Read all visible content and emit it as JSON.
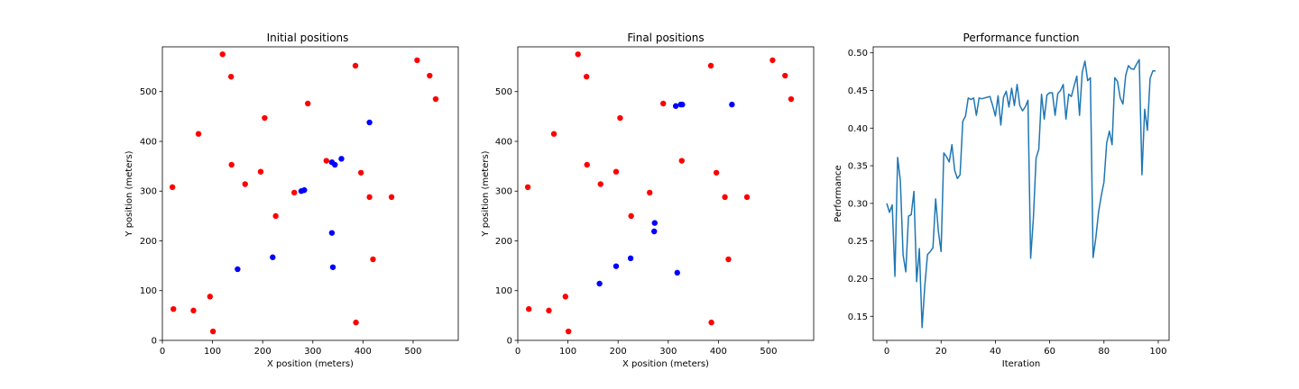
{
  "chart_data": [
    {
      "type": "scatter",
      "title": "Initial positions",
      "xlabel": "X position (meters)",
      "ylabel": "Y position (meters)",
      "xlim": [
        0,
        590
      ],
      "ylim": [
        0,
        590
      ],
      "xticks": [
        0,
        100,
        200,
        300,
        400,
        500
      ],
      "yticks": [
        0,
        100,
        200,
        300,
        400,
        500
      ],
      "grid": false,
      "series": [
        {
          "color": "#ff0000",
          "points": [
            [
              120,
              575
            ],
            [
              137,
              530
            ],
            [
              385,
              552
            ],
            [
              508,
              563
            ],
            [
              533,
              532
            ],
            [
              545,
              485
            ],
            [
              290,
              476
            ],
            [
              204,
              447
            ],
            [
              72,
              415
            ],
            [
              138,
              353
            ],
            [
              196,
              339
            ],
            [
              165,
              314
            ],
            [
              20,
              308
            ],
            [
              263,
              297
            ],
            [
              327,
              361
            ],
            [
              396,
              337
            ],
            [
              413,
              288
            ],
            [
              457,
              288
            ],
            [
              226,
              250
            ],
            [
              420,
              163
            ],
            [
              22,
              63
            ],
            [
              62,
              60
            ],
            [
              95,
              88
            ],
            [
              101,
              18
            ],
            [
              386,
              36
            ]
          ]
        },
        {
          "color": "#0000ff",
          "points": [
            [
              413,
              438
            ],
            [
              357,
              365
            ],
            [
              338,
              358
            ],
            [
              344,
              353
            ],
            [
              277,
              300
            ],
            [
              283,
              302
            ],
            [
              338,
              216
            ],
            [
              220,
              167
            ],
            [
              150,
              143
            ],
            [
              340,
              147
            ]
          ]
        }
      ]
    },
    {
      "type": "scatter",
      "title": "Final positions",
      "xlabel": "X position (meters)",
      "ylabel": "Y position (meters)",
      "xlim": [
        0,
        590
      ],
      "ylim": [
        0,
        590
      ],
      "xticks": [
        0,
        100,
        200,
        300,
        400,
        500
      ],
      "yticks": [
        0,
        100,
        200,
        300,
        400,
        500
      ],
      "grid": false,
      "series": [
        {
          "color": "#ff0000",
          "points": [
            [
              120,
              575
            ],
            [
              137,
              530
            ],
            [
              385,
              552
            ],
            [
              508,
              563
            ],
            [
              533,
              532
            ],
            [
              545,
              485
            ],
            [
              290,
              476
            ],
            [
              204,
              447
            ],
            [
              72,
              415
            ],
            [
              138,
              353
            ],
            [
              196,
              339
            ],
            [
              165,
              314
            ],
            [
              20,
              308
            ],
            [
              263,
              297
            ],
            [
              327,
              361
            ],
            [
              396,
              337
            ],
            [
              413,
              288
            ],
            [
              457,
              288
            ],
            [
              226,
              250
            ],
            [
              420,
              163
            ],
            [
              22,
              63
            ],
            [
              62,
              60
            ],
            [
              95,
              88
            ],
            [
              101,
              18
            ],
            [
              386,
              36
            ]
          ]
        },
        {
          "color": "#0000ff",
          "points": [
            [
              315,
              471
            ],
            [
              325,
              474
            ],
            [
              328,
              474
            ],
            [
              427,
              474
            ],
            [
              273,
              236
            ],
            [
              272,
              219
            ],
            [
              225,
              165
            ],
            [
              196,
              149
            ],
            [
              163,
              114
            ],
            [
              318,
              136
            ]
          ]
        }
      ]
    },
    {
      "type": "line",
      "title": "Performance function",
      "xlabel": "Iteration",
      "ylabel": "Performance",
      "xlim": [
        -5,
        104
      ],
      "ylim": [
        0.118,
        0.508
      ],
      "xticks": [
        0,
        20,
        40,
        60,
        80,
        100
      ],
      "yticks": [
        0.15,
        0.2,
        0.25,
        0.3,
        0.35,
        0.4,
        0.45,
        0.5
      ],
      "grid": false,
      "series": [
        {
          "color": "#1f77b4",
          "x": [
            0,
            1,
            2,
            3,
            4,
            5,
            6,
            7,
            8,
            9,
            10,
            11,
            12,
            13,
            14,
            15,
            16,
            17,
            18,
            19,
            20,
            21,
            22,
            23,
            24,
            25,
            26,
            27,
            28,
            29,
            30,
            31,
            32,
            33,
            34,
            35,
            36,
            37,
            38,
            39,
            40,
            41,
            42,
            43,
            44,
            45,
            46,
            47,
            48,
            49,
            50,
            51,
            52,
            53,
            54,
            55,
            56,
            57,
            58,
            59,
            60,
            61,
            62,
            63,
            64,
            65,
            66,
            67,
            68,
            69,
            70,
            71,
            72,
            73,
            74,
            75,
            76,
            77,
            78,
            79,
            80,
            81,
            82,
            83,
            84,
            85,
            86,
            87,
            88,
            89,
            90,
            91,
            92,
            93,
            94,
            95,
            96,
            97,
            98,
            99
          ],
          "y": [
            0.3,
            0.288,
            0.298,
            0.203,
            0.361,
            0.33,
            0.232,
            0.209,
            0.283,
            0.285,
            0.316,
            0.196,
            0.24,
            0.135,
            0.19,
            0.232,
            0.236,
            0.241,
            0.306,
            0.263,
            0.236,
            0.367,
            0.362,
            0.355,
            0.378,
            0.344,
            0.333,
            0.338,
            0.409,
            0.416,
            0.44,
            0.438,
            0.44,
            0.417,
            0.44,
            0.439,
            0.44,
            0.441,
            0.442,
            0.43,
            0.416,
            0.443,
            0.404,
            0.441,
            0.449,
            0.428,
            0.453,
            0.43,
            0.458,
            0.43,
            0.423,
            0.428,
            0.437,
            0.227,
            0.28,
            0.36,
            0.372,
            0.445,
            0.412,
            0.444,
            0.447,
            0.447,
            0.417,
            0.446,
            0.45,
            0.458,
            0.412,
            0.445,
            0.442,
            0.456,
            0.469,
            0.417,
            0.474,
            0.489,
            0.463,
            0.467,
            0.228,
            0.254,
            0.288,
            0.31,
            0.328,
            0.38,
            0.396,
            0.378,
            0.467,
            0.462,
            0.44,
            0.432,
            0.47,
            0.483,
            0.479,
            0.478,
            0.485,
            0.491,
            0.338,
            0.425,
            0.397,
            0.466,
            0.476,
            0.476
          ]
        }
      ]
    }
  ]
}
